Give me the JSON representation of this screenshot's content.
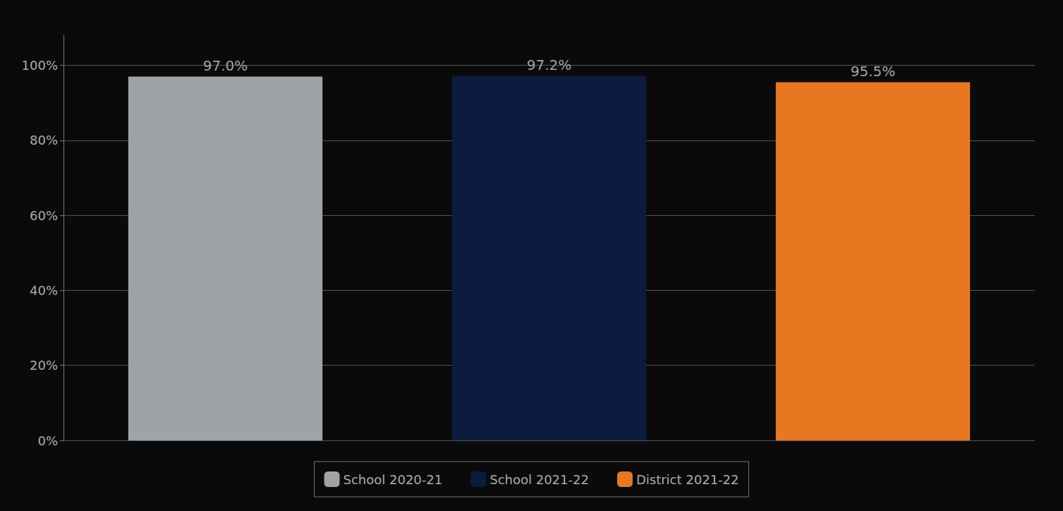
{
  "chart_data": {
    "type": "bar",
    "categories": [
      "School 2020-21",
      "School 2021-22",
      "District 2021-22"
    ],
    "values": [
      0.97,
      0.972,
      0.955
    ],
    "colors": [
      "#9EA3A8",
      "#0D1B3E",
      "#E87722"
    ],
    "value_labels": [
      "97.0%",
      "97.2%",
      "95.5%"
    ],
    "data_labels": true,
    "ylim": [
      0,
      1.08
    ],
    "yticks": [
      {
        "value": 0.0,
        "label": "0%"
      },
      {
        "value": 0.2,
        "label": "20%"
      },
      {
        "value": 0.4,
        "label": "40%"
      },
      {
        "value": 0.6,
        "label": "60%"
      },
      {
        "value": 0.8,
        "label": "80%"
      },
      {
        "value": 1.0,
        "label": "100%"
      }
    ],
    "grid": true,
    "legend": "bottom",
    "tick_labels": "y"
  }
}
